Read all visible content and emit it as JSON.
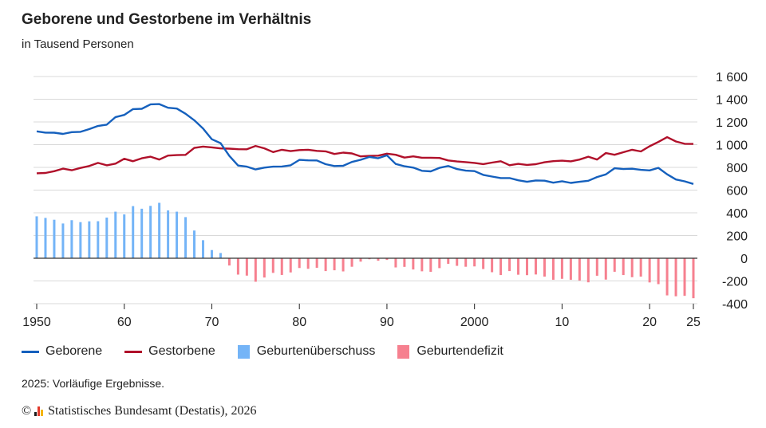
{
  "chart_data": {
    "type": "line+bar",
    "title": "Geborene und Gestorbene im Verhältnis",
    "subtitle": "in Tausend Personen",
    "x_start": 1950,
    "x_end": 2025,
    "ylim": [
      -400,
      1600
    ],
    "y_ticks": [
      "1 600",
      "1 400",
      "1 200",
      "1 000",
      "800",
      "600",
      "400",
      "200",
      "0",
      "-200",
      "-400"
    ],
    "y_tick_values": [
      1600,
      1400,
      1200,
      1000,
      800,
      600,
      400,
      200,
      0,
      -200,
      -400
    ],
    "x_ticks": [
      "1950",
      "60",
      "70",
      "80",
      "90",
      "2000",
      "10",
      "20",
      "25"
    ],
    "x_tick_values": [
      1950,
      1960,
      1970,
      1980,
      1990,
      2000,
      2010,
      2020,
      2025
    ],
    "grid": true,
    "colors": {
      "born": "#1560bd",
      "died": "#b0102a",
      "surplus": "#74b4f7",
      "deficit": "#f6808f",
      "grid": "#d9d9d9",
      "zero": "#333333"
    },
    "series": [
      {
        "name": "Geborene",
        "values": [
          1117,
          1106,
          1105,
          1095,
          1110,
          1113,
          1137,
          1165,
          1176,
          1243,
          1262,
          1313,
          1316,
          1355,
          1357,
          1325,
          1318,
          1272,
          1215,
          1142,
          1048,
          1013,
          901,
          816,
          806,
          782,
          798,
          806,
          808,
          818,
          866,
          862,
          861,
          828,
          812,
          814,
          848,
          867,
          892,
          881,
          906,
          830,
          810,
          798,
          770,
          765,
          796,
          812,
          785,
          771,
          767,
          734,
          719,
          706,
          706,
          686,
          673,
          685,
          683,
          665,
          678,
          663,
          673,
          682,
          715,
          738,
          792,
          785,
          788,
          778,
          773,
          796,
          739,
          693,
          677,
          654
        ]
      },
      {
        "name": "Gestorbene",
        "values": [
          748,
          751,
          766,
          789,
          775,
          795,
          812,
          839,
          818,
          833,
          876,
          854,
          880,
          894,
          869,
          904,
          908,
          910,
          971,
          983,
          976,
          967,
          965,
          960,
          959,
          989,
          968,
          935,
          955,
          943,
          952,
          955,
          945,
          941,
          918,
          930,
          923,
          897,
          901,
          903,
          921,
          911,
          886,
          897,
          885,
          885,
          883,
          861,
          852,
          846,
          839,
          829,
          842,
          854,
          819,
          831,
          822,
          828,
          845,
          855,
          859,
          853,
          869,
          894,
          869,
          926,
          911,
          933,
          955,
          940,
          986,
          1024,
          1066,
          1028,
          1008,
          1006
        ]
      },
      {
        "name": "Geburtenüberschuss",
        "values": [
          369,
          355,
          339,
          306,
          335,
          318,
          325,
          326,
          358,
          410,
          386,
          459,
          436,
          461,
          488,
          421,
          410,
          362,
          244,
          159,
          72,
          46,
          0,
          0,
          0,
          0,
          0,
          0,
          0,
          0,
          0,
          0,
          0,
          0,
          0,
          0,
          0,
          0,
          0,
          0,
          0,
          0,
          0,
          0,
          0,
          0,
          0,
          0,
          0,
          0,
          0,
          0,
          0,
          0,
          0,
          0,
          0,
          0,
          0,
          0,
          0,
          0,
          0,
          0,
          0,
          0,
          0,
          0,
          0,
          0,
          0,
          0,
          0,
          0,
          0,
          0
        ]
      },
      {
        "name": "Geburtendefizit",
        "values": [
          0,
          0,
          0,
          0,
          0,
          0,
          0,
          0,
          0,
          0,
          0,
          0,
          0,
          0,
          0,
          0,
          0,
          0,
          0,
          0,
          0,
          0,
          -64,
          -144,
          -153,
          -207,
          -170,
          -129,
          -147,
          -125,
          -86,
          -93,
          -84,
          -113,
          -106,
          -116,
          -75,
          -30,
          -9,
          -22,
          -15,
          -81,
          -76,
          -99,
          -115,
          -120,
          -87,
          -49,
          -67,
          -75,
          -72,
          -95,
          -123,
          -148,
          -113,
          -145,
          -149,
          -143,
          -162,
          -190,
          -181,
          -190,
          -196,
          -212,
          -154,
          -188,
          -119,
          -148,
          -167,
          -162,
          -213,
          -228,
          -327,
          -335,
          -331,
          -352
        ]
      }
    ],
    "legend_position": "bottom"
  },
  "legend": {
    "born": "Geborene",
    "died": "Gestorbene",
    "surplus": "Geburtenüberschuss",
    "deficit": "Geburtendefizit"
  },
  "footnote": "2025: Vorläufige Ergebnisse.",
  "source": {
    "copyright": "©",
    "text": "Statistisches Bundesamt (Destatis), 2026",
    "logo_colors": [
      "#1c1c1c",
      "#e23a2c",
      "#f5b400"
    ]
  }
}
